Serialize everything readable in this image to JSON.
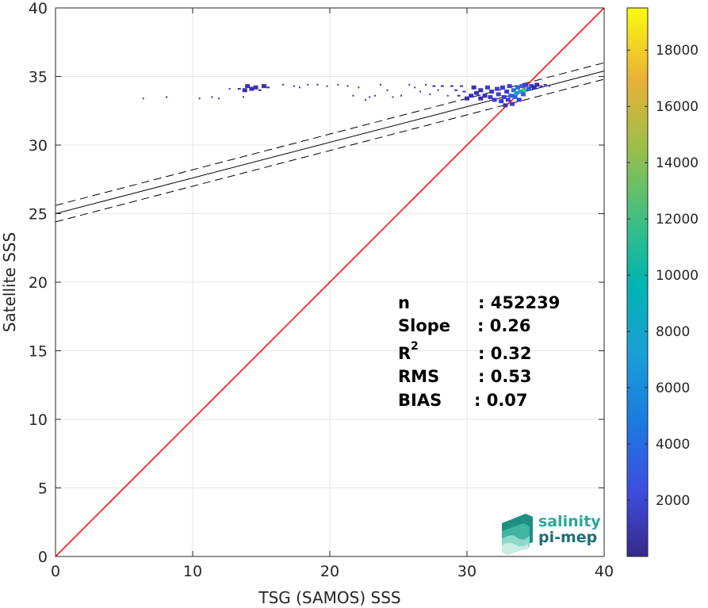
{
  "chart_data": {
    "type": "scatter",
    "subtype": "density-scatter",
    "xlabel": "TSG (SAMOS) SSS",
    "ylabel": "Satellite SSS",
    "xlim": [
      0,
      40
    ],
    "ylim": [
      0,
      40
    ],
    "xticks": [
      "0",
      "10",
      "20",
      "30",
      "40"
    ],
    "yticks": [
      "0",
      "5",
      "10",
      "15",
      "20",
      "25",
      "30",
      "35",
      "40"
    ],
    "grid": true,
    "lines": {
      "identity": {
        "slope": 1,
        "intercept": 0,
        "color": "#ff0000"
      },
      "fit": {
        "slope": 0.26,
        "intercept": 25.0,
        "color": "#000000"
      },
      "fit_upper": {
        "slope": 0.26,
        "intercept": 25.6,
        "color": "#000000",
        "style": "dashed"
      },
      "fit_lower": {
        "slope": 0.26,
        "intercept": 24.4,
        "color": "#000000",
        "style": "dashed"
      }
    },
    "points": [
      {
        "x": 6.4,
        "y": 33.4,
        "d": 1
      },
      {
        "x": 8.1,
        "y": 33.5,
        "d": 1
      },
      {
        "x": 10.5,
        "y": 33.4,
        "d": 1
      },
      {
        "x": 11.4,
        "y": 33.5,
        "d": 1
      },
      {
        "x": 11.9,
        "y": 33.4,
        "d": 1
      },
      {
        "x": 12.7,
        "y": 34.1,
        "d": 1
      },
      {
        "x": 13.4,
        "y": 34.1,
        "d": 2
      },
      {
        "x": 13.8,
        "y": 34.0,
        "d": 3
      },
      {
        "x": 14.0,
        "y": 34.3,
        "d": 3
      },
      {
        "x": 14.3,
        "y": 34.1,
        "d": 3
      },
      {
        "x": 14.6,
        "y": 34.2,
        "d": 3
      },
      {
        "x": 14.9,
        "y": 34.0,
        "d": 2
      },
      {
        "x": 15.2,
        "y": 34.3,
        "d": 3
      },
      {
        "x": 15.5,
        "y": 34.2,
        "d": 2
      },
      {
        "x": 13.7,
        "y": 33.5,
        "d": 1
      },
      {
        "x": 16.6,
        "y": 34.4,
        "d": 1
      },
      {
        "x": 17.4,
        "y": 34.3,
        "d": 1
      },
      {
        "x": 17.8,
        "y": 34.2,
        "d": 1
      },
      {
        "x": 18.4,
        "y": 34.4,
        "d": 1
      },
      {
        "x": 19.1,
        "y": 34.4,
        "d": 1
      },
      {
        "x": 19.8,
        "y": 34.3,
        "d": 1
      },
      {
        "x": 20.6,
        "y": 34.4,
        "d": 1
      },
      {
        "x": 21.3,
        "y": 34.3,
        "d": 1
      },
      {
        "x": 21.7,
        "y": 33.6,
        "d": 1
      },
      {
        "x": 22.1,
        "y": 34.2,
        "d": 1
      },
      {
        "x": 22.6,
        "y": 33.3,
        "d": 1
      },
      {
        "x": 22.9,
        "y": 33.5,
        "d": 1
      },
      {
        "x": 23.3,
        "y": 33.6,
        "d": 1
      },
      {
        "x": 23.7,
        "y": 34.4,
        "d": 1
      },
      {
        "x": 24.2,
        "y": 34.0,
        "d": 1
      },
      {
        "x": 24.6,
        "y": 33.5,
        "d": 1
      },
      {
        "x": 25.2,
        "y": 33.6,
        "d": 1
      },
      {
        "x": 25.8,
        "y": 34.4,
        "d": 1
      },
      {
        "x": 26.2,
        "y": 34.2,
        "d": 1
      },
      {
        "x": 26.6,
        "y": 33.9,
        "d": 1
      },
      {
        "x": 27.0,
        "y": 34.4,
        "d": 1
      },
      {
        "x": 27.3,
        "y": 33.7,
        "d": 1
      },
      {
        "x": 27.6,
        "y": 34.3,
        "d": 2
      },
      {
        "x": 27.9,
        "y": 34.0,
        "d": 1
      },
      {
        "x": 28.2,
        "y": 34.3,
        "d": 2
      },
      {
        "x": 28.6,
        "y": 33.6,
        "d": 1
      },
      {
        "x": 28.9,
        "y": 34.3,
        "d": 2
      },
      {
        "x": 29.2,
        "y": 34.0,
        "d": 2
      },
      {
        "x": 29.4,
        "y": 33.6,
        "d": 2
      },
      {
        "x": 29.6,
        "y": 34.3,
        "d": 2
      },
      {
        "x": 29.8,
        "y": 33.9,
        "d": 2
      },
      {
        "x": 30.0,
        "y": 33.4,
        "d": 3
      },
      {
        "x": 30.3,
        "y": 33.6,
        "d": 3
      },
      {
        "x": 30.5,
        "y": 34.2,
        "d": 3
      },
      {
        "x": 30.7,
        "y": 33.8,
        "d": 3
      },
      {
        "x": 31.0,
        "y": 33.4,
        "d": 3
      },
      {
        "x": 31.0,
        "y": 34.0,
        "d": 3
      },
      {
        "x": 31.3,
        "y": 33.6,
        "d": 3
      },
      {
        "x": 31.5,
        "y": 34.2,
        "d": 4
      },
      {
        "x": 31.7,
        "y": 33.5,
        "d": 4
      },
      {
        "x": 31.8,
        "y": 33.9,
        "d": 4
      },
      {
        "x": 32.0,
        "y": 33.3,
        "d": 4
      },
      {
        "x": 32.2,
        "y": 34.1,
        "d": 4
      },
      {
        "x": 32.3,
        "y": 33.7,
        "d": 5
      },
      {
        "x": 32.5,
        "y": 33.2,
        "d": 4
      },
      {
        "x": 32.6,
        "y": 34.2,
        "d": 4
      },
      {
        "x": 32.7,
        "y": 33.5,
        "d": 6
      },
      {
        "x": 32.8,
        "y": 32.9,
        "d": 3
      },
      {
        "x": 32.9,
        "y": 33.9,
        "d": 6
      },
      {
        "x": 33.0,
        "y": 33.3,
        "d": 6
      },
      {
        "x": 33.1,
        "y": 34.3,
        "d": 4
      },
      {
        "x": 33.2,
        "y": 33.6,
        "d": 8
      },
      {
        "x": 33.3,
        "y": 33.0,
        "d": 4
      },
      {
        "x": 33.4,
        "y": 34.0,
        "d": 7
      },
      {
        "x": 33.5,
        "y": 33.5,
        "d": 8
      },
      {
        "x": 33.6,
        "y": 33.8,
        "d": 10
      },
      {
        "x": 33.7,
        "y": 34.2,
        "d": 7
      },
      {
        "x": 33.8,
        "y": 33.3,
        "d": 5
      },
      {
        "x": 33.9,
        "y": 33.9,
        "d": 13
      },
      {
        "x": 34.0,
        "y": 34.3,
        "d": 8
      },
      {
        "x": 34.1,
        "y": 33.7,
        "d": 9
      },
      {
        "x": 34.2,
        "y": 34.0,
        "d": 16
      },
      {
        "x": 34.3,
        "y": 34.4,
        "d": 6
      },
      {
        "x": 34.5,
        "y": 34.1,
        "d": 7
      },
      {
        "x": 34.7,
        "y": 34.3,
        "d": 5
      },
      {
        "x": 34.9,
        "y": 34.2,
        "d": 3
      },
      {
        "x": 35.1,
        "y": 34.4,
        "d": 3
      },
      {
        "x": 35.4,
        "y": 34.3,
        "d": 2
      },
      {
        "x": 35.7,
        "y": 34.4,
        "d": 2
      },
      {
        "x": 36.0,
        "y": 34.3,
        "d": 1
      }
    ],
    "colorbar": {
      "range": [
        0,
        19500
      ],
      "ticks": [
        "2000",
        "4000",
        "6000",
        "8000",
        "10000",
        "12000",
        "14000",
        "16000",
        "18000"
      ],
      "colormap": "parula"
    }
  },
  "stats": [
    {
      "label": "n",
      "value": ": 452239"
    },
    {
      "label": "Slope",
      "value": ": 0.26"
    },
    {
      "label": "R",
      "sup": "2",
      "value": ": 0.32"
    },
    {
      "label": "RMS",
      "value": ": 0.53"
    },
    {
      "label": "BIAS",
      "value": ": 0.07"
    }
  ],
  "logo": {
    "line1": "salinity",
    "line2": "pi-mep",
    "color1": "#2aa89a",
    "color2": "#1f6e78"
  }
}
